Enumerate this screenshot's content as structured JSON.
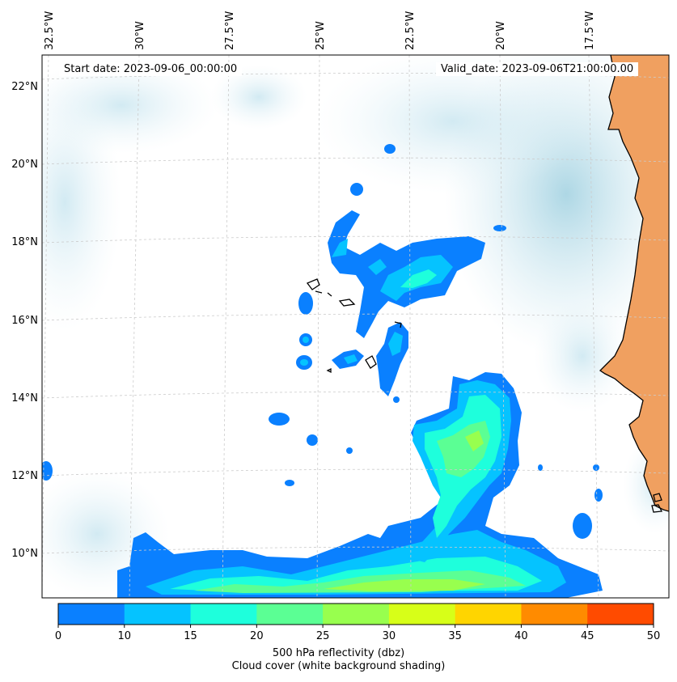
{
  "map": {
    "start_date_label": "Start date: 2023-09-06_00:00:00",
    "valid_date_label": "Valid_date: 2023-09-06T21:00:00.00",
    "lon_ticks": [
      "32.5°W",
      "30°W",
      "27.5°W",
      "25°W",
      "22.5°W",
      "20°W",
      "17.5°W"
    ],
    "lat_ticks": [
      "22°N",
      "20°N",
      "18°N",
      "16°N",
      "14°N",
      "12°N",
      "10°N"
    ],
    "lon_values": [
      -32.5,
      -30,
      -27.5,
      -25,
      -22.5,
      -20,
      -17.5
    ],
    "lat_values": [
      22,
      20,
      18,
      16,
      14,
      12,
      10
    ],
    "field": "500 hPa reflectivity",
    "background_shading": "Cloud cover"
  },
  "colorbar": {
    "label_line1": "500 hPa reflectivity (dbz)",
    "label_line2": "Cloud cover (white background shading)",
    "ticks": [
      "0",
      "10",
      "15",
      "20",
      "25",
      "30",
      "35",
      "40",
      "45",
      "50"
    ],
    "colors": [
      "#0a80ff",
      "#05c3ff",
      "#1effdc",
      "#5bff94",
      "#98ff4e",
      "#d7ff18",
      "#ffd500",
      "#ff8b00",
      "#ff4b00"
    ]
  },
  "colors": {
    "land": "#f0a060",
    "cloud": "#add8e6",
    "coast": "#000000",
    "grid": "#cccccc"
  }
}
